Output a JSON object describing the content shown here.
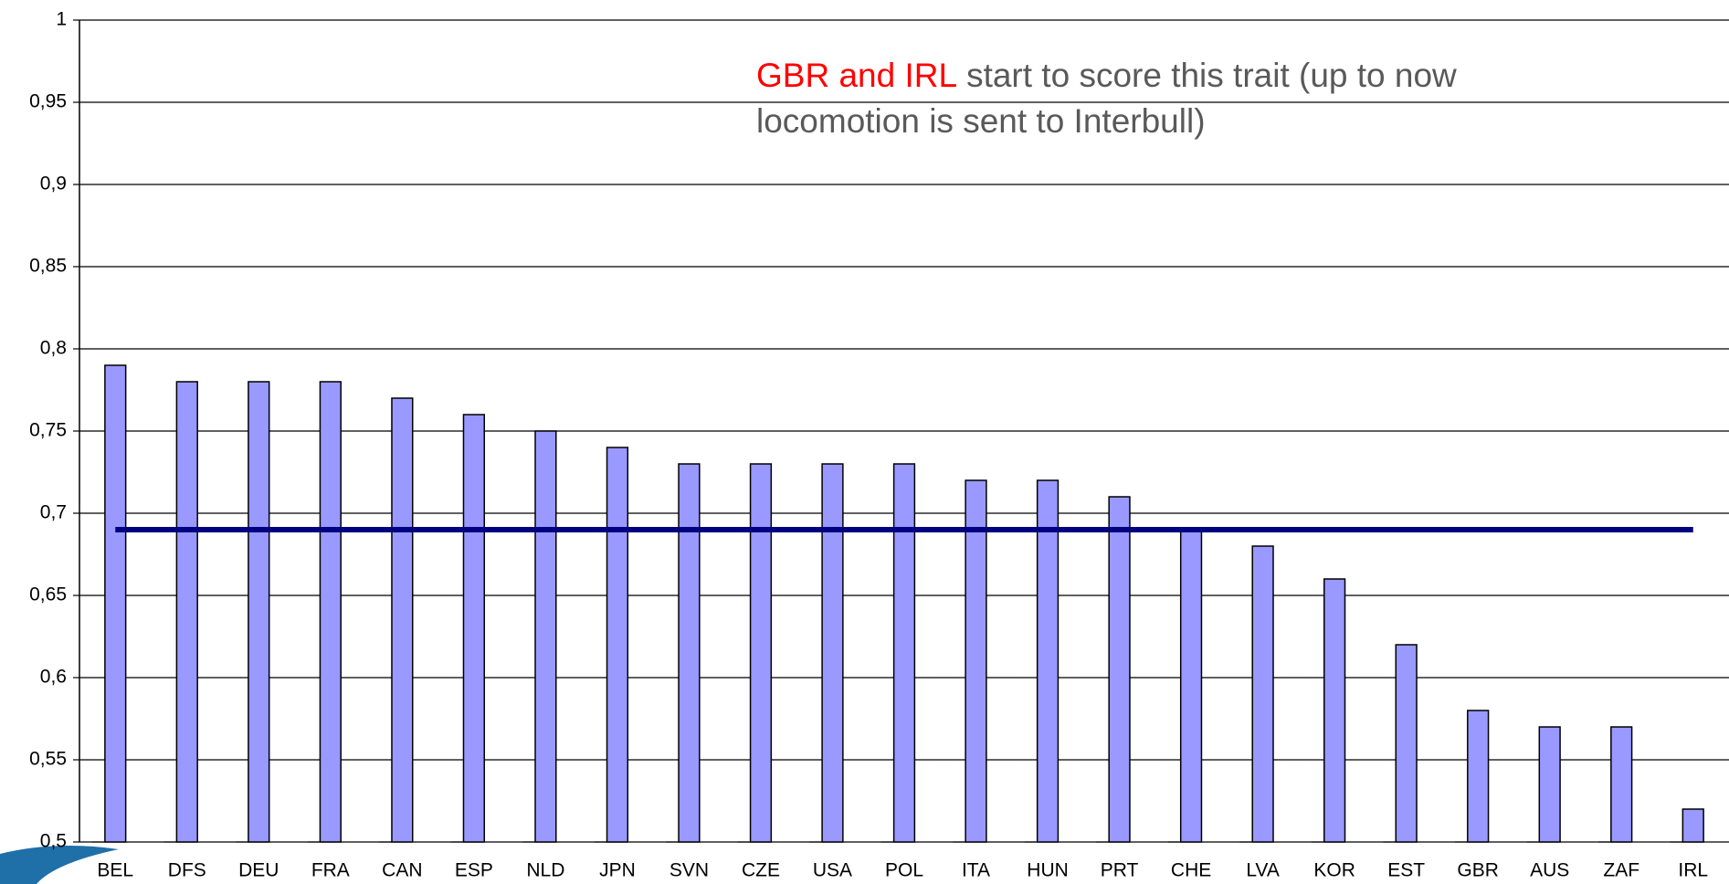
{
  "chart_data": {
    "type": "bar",
    "categories": [
      "BEL",
      "DFS",
      "DEU",
      "FRA",
      "CAN",
      "ESP",
      "NLD",
      "JPN",
      "SVN",
      "CZE",
      "USA",
      "POL",
      "ITA",
      "HUN",
      "PRT",
      "CHE",
      "LVA",
      "KOR",
      "EST",
      "GBR",
      "AUS",
      "ZAF",
      "IRL"
    ],
    "values": [
      0.79,
      0.78,
      0.78,
      0.78,
      0.77,
      0.76,
      0.75,
      0.74,
      0.73,
      0.73,
      0.73,
      0.73,
      0.72,
      0.72,
      0.71,
      0.69,
      0.68,
      0.66,
      0.62,
      0.58,
      0.57,
      0.57,
      0.52
    ],
    "color": "#9999ff",
    "reference_line": {
      "value": 0.69,
      "color": "#000080"
    },
    "annotation": {
      "highlight": "GBR and IRL",
      "highlight_color": "#ff0000",
      "text": "start to score this trait (up to now locomotion is sent to Interbull)"
    },
    "ylim": [
      0.5,
      1
    ],
    "yticks": [
      {
        "value": 0.5,
        "label": "0,5"
      },
      {
        "value": 0.55,
        "label": "0,55"
      },
      {
        "value": 0.6,
        "label": "0,6"
      },
      {
        "value": 0.65,
        "label": "0,65"
      },
      {
        "value": 0.7,
        "label": "0,7"
      },
      {
        "value": 0.75,
        "label": "0,75"
      },
      {
        "value": 0.8,
        "label": "0,8"
      },
      {
        "value": 0.85,
        "label": "0,85"
      },
      {
        "value": 0.9,
        "label": "0,9"
      },
      {
        "value": 0.95,
        "label": "0,95"
      },
      1
    ],
    "grid": true
  }
}
